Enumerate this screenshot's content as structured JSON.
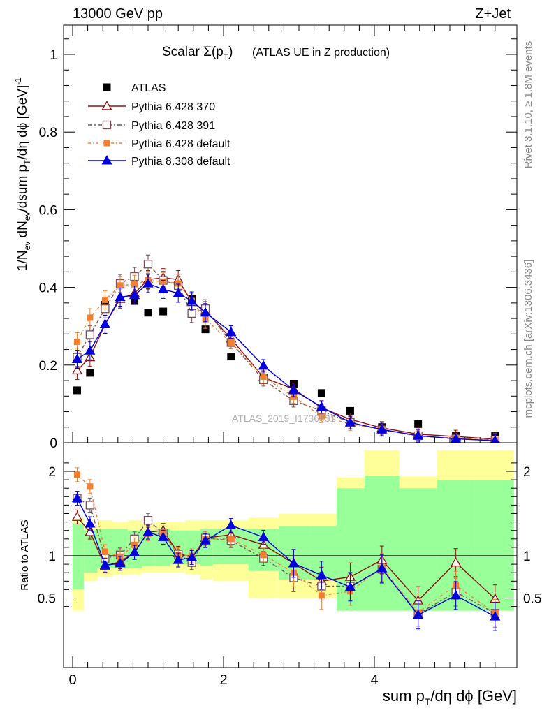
{
  "header": {
    "left": "13000 GeV pp",
    "right": "Z+Jet"
  },
  "side_labels": {
    "rivet": "Rivet 3.1.10, ≥ 1.8M events",
    "mcplots": "mcplots.cern.ch [arXiv:1306.3436]"
  },
  "watermark": "ATLAS_2019_I1736531",
  "colors": {
    "atlas": "#000000",
    "p370": "#8b1010",
    "p391": "#7a5058",
    "p6def": "#f08030",
    "p8def": "#0000dd",
    "band_inner": "#99ff99",
    "band_outer": "#ffff99"
  },
  "chart_data": [
    {
      "type": "scatter",
      "title_main": "Scalar Σ(p",
      "title_sub": "T",
      "title_close": ")",
      "title_suffix": "(ATLAS UE in Z production)",
      "ylabel": "1/N_ev dN_ev/dsum p_T/dη dφ [GeV]^-1",
      "ylim": [
        0,
        1.08
      ],
      "yticks": [
        "0",
        "0.2",
        "0.4",
        "0.6",
        "0.8",
        "1"
      ],
      "ytick_values": [
        0,
        0.2,
        0.4,
        0.6,
        0.8,
        1.0
      ],
      "x": [
        0.06,
        0.23,
        0.43,
        0.63,
        0.82,
        1.0,
        1.2,
        1.4,
        1.58,
        1.76,
        2.1,
        2.53,
        2.93,
        3.3,
        3.68,
        4.1,
        4.58,
        5.08,
        5.6
      ],
      "series": [
        {
          "name": "ATLAS",
          "key": "atlas",
          "values": [
            0.135,
            0.18,
            0.355,
            0.41,
            0.365,
            0.335,
            0.338,
            0.405,
            0.37,
            0.292,
            0.222,
            0.168,
            0.152,
            0.128,
            0.082,
            0.04,
            0.048,
            0.018,
            0.018
          ]
        },
        {
          "name": "Pythia 6.428 370",
          "key": "p370",
          "values": [
            0.186,
            0.22,
            0.305,
            0.37,
            0.385,
            0.42,
            0.425,
            0.42,
            0.362,
            0.34,
            0.268,
            0.168,
            0.138,
            0.09,
            0.06,
            0.038,
            0.022,
            0.016,
            0.009
          ]
        },
        {
          "name": "Pythia 6.428 391",
          "key": "p391",
          "values": [
            0.22,
            0.278,
            0.345,
            0.41,
            0.428,
            0.46,
            0.418,
            0.405,
            0.333,
            0.345,
            0.258,
            0.162,
            0.108,
            0.082,
            0.052,
            0.033,
            0.018,
            0.01,
            0.007
          ]
        },
        {
          "name": "Pythia 6.428 default",
          "key": "p6def",
          "values": [
            0.26,
            0.322,
            0.368,
            0.405,
            0.408,
            0.418,
            0.415,
            0.41,
            0.365,
            0.318,
            0.258,
            0.17,
            0.118,
            0.068,
            0.048,
            0.034,
            0.016,
            0.012,
            0.006
          ]
        },
        {
          "name": "Pythia 8.308 default",
          "key": "p8def",
          "values": [
            0.215,
            0.237,
            0.305,
            0.375,
            0.38,
            0.41,
            0.395,
            0.385,
            0.365,
            0.335,
            0.285,
            0.198,
            0.135,
            0.092,
            0.052,
            0.034,
            0.018,
            0.01,
            0.005
          ]
        }
      ]
    },
    {
      "type": "line",
      "ylabel": "Ratio to ATLAS",
      "xlabel": "sum p_T/dη dφ [GeV]",
      "xlim": [
        -0.1,
        5.85
      ],
      "ylim": [
        0.35,
        2.25
      ],
      "yticks": [
        "0.5",
        "1",
        "2"
      ],
      "ytick_values": [
        0.5,
        1.0,
        2.0
      ],
      "xticks": [
        "0",
        "2",
        "4"
      ],
      "xtick_values": [
        0,
        2,
        4
      ],
      "band_edges": [
        0.0,
        0.15,
        0.33,
        0.53,
        0.73,
        0.92,
        1.1,
        1.29,
        1.49,
        1.69,
        1.86,
        2.33,
        2.73,
        3.14,
        3.5,
        3.87,
        4.33,
        4.83,
        5.33,
        5.85
      ],
      "band_inner": [
        [
          0.6,
          1.38
        ],
        [
          0.8,
          1.3
        ],
        [
          0.85,
          1.32
        ],
        [
          0.85,
          1.32
        ],
        [
          0.85,
          1.3
        ],
        [
          0.88,
          1.3
        ],
        [
          0.88,
          1.32
        ],
        [
          0.9,
          1.3
        ],
        [
          0.9,
          1.3
        ],
        [
          0.88,
          1.32
        ],
        [
          0.9,
          1.32
        ],
        [
          0.82,
          1.32
        ],
        [
          0.72,
          1.35
        ],
        [
          0.72,
          1.35
        ],
        [
          0.35,
          1.8
        ],
        [
          0.35,
          1.95
        ],
        [
          0.35,
          1.8
        ],
        [
          0.35,
          1.9
        ],
        [
          0.35,
          1.9
        ]
      ],
      "band_outer": [
        [
          0.35,
          1.45
        ],
        [
          0.7,
          1.35
        ],
        [
          0.75,
          1.42
        ],
        [
          0.77,
          1.4
        ],
        [
          0.78,
          1.42
        ],
        [
          0.8,
          1.38
        ],
        [
          0.8,
          1.4
        ],
        [
          0.8,
          1.4
        ],
        [
          0.78,
          1.42
        ],
        [
          0.72,
          1.42
        ],
        [
          0.7,
          1.42
        ],
        [
          0.5,
          1.45
        ],
        [
          0.5,
          1.5
        ],
        [
          0.5,
          1.5
        ],
        [
          0.35,
          1.93
        ],
        [
          0.35,
          2.25
        ],
        [
          0.35,
          1.94
        ],
        [
          0.35,
          2.25
        ],
        [
          0.35,
          2.25
        ]
      ],
      "series": [
        {
          "name": "Pythia 6.428 370",
          "key": "p370",
          "values": [
            1.46,
            1.28,
            0.88,
            0.93,
            1.04,
            1.28,
            1.3,
            1.03,
            0.98,
            1.21,
            1.25,
            1.13,
            0.91,
            0.7,
            0.75,
            0.95,
            0.47,
            0.92,
            0.49
          ]
        },
        {
          "name": "Pythia 6.428 391",
          "key": "p391",
          "values": [
            1.68,
            1.6,
            0.97,
            1.01,
            1.2,
            1.42,
            1.27,
            1.02,
            0.92,
            1.21,
            1.18,
            0.97,
            0.74,
            0.64,
            0.64,
            0.84,
            0.31,
            0.57,
            0.32
          ]
        },
        {
          "name": "Pythia 6.428 default",
          "key": "p6def",
          "values": [
            1.96,
            1.82,
            1.05,
            0.99,
            1.13,
            1.26,
            1.27,
            1.01,
            1.0,
            1.2,
            1.2,
            1.01,
            0.8,
            0.53,
            0.58,
            0.86,
            0.33,
            0.65,
            0.32
          ]
        },
        {
          "name": "Pythia 8.308 default",
          "key": "p8def",
          "values": [
            1.68,
            1.38,
            0.89,
            0.91,
            1.04,
            1.28,
            1.22,
            0.95,
            0.98,
            1.18,
            1.36,
            1.22,
            0.91,
            0.77,
            0.63,
            0.85,
            0.3,
            0.53,
            0.28
          ]
        }
      ]
    }
  ]
}
